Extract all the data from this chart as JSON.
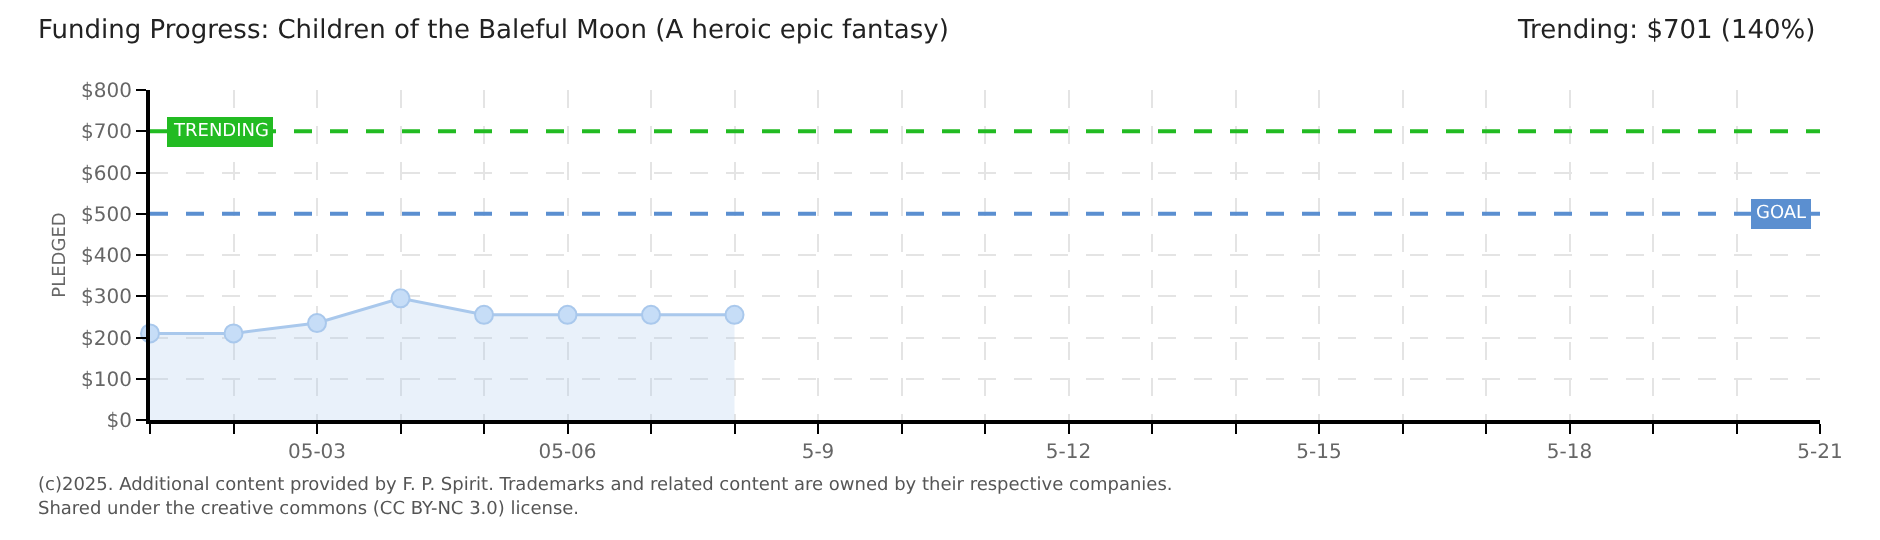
{
  "chart_data": {
    "type": "area",
    "title": "Funding Progress: Children of the Baleful Moon (A heroic epic fantasy)",
    "subtitle": "Trending: $701 (140%)",
    "ylabel": "PLEDGED",
    "x": [
      "--05-01",
      "--05-02",
      "--05-03",
      "--05-04",
      "--05-05",
      "--05-06",
      "--05-07",
      "--05-08"
    ],
    "series": [
      {
        "color": "#a9c8ec",
        "values": [
          210,
          210,
          235,
          295,
          255,
          255,
          255,
          255
        ]
      }
    ],
    "xlim": [
      "--05-01",
      "--05-21"
    ],
    "xticks": [
      {
        "value": "--05-01",
        "label": null
      },
      {
        "value": "--05-02",
        "label": null
      },
      {
        "value": "--05-03",
        "label": "05-03"
      },
      {
        "value": "--05-04",
        "label": null
      },
      {
        "value": "--05-05",
        "label": null
      },
      {
        "value": "--05-06",
        "label": "05-06"
      },
      {
        "value": "--05-07",
        "label": null
      },
      {
        "value": "--05-08",
        "label": null
      },
      {
        "value": "--05-09",
        "label": "5-9"
      },
      {
        "value": "--05-10",
        "label": null
      },
      {
        "value": "--05-11",
        "label": null
      },
      {
        "value": "--05-12",
        "label": "5-12"
      },
      {
        "value": "--05-13",
        "label": null
      },
      {
        "value": "--05-14",
        "label": null
      },
      {
        "value": "--05-15",
        "label": "5-15"
      },
      {
        "value": "--05-16",
        "label": null
      },
      {
        "value": "--05-17",
        "label": null
      },
      {
        "value": "--05-18",
        "label": "5-18"
      },
      {
        "value": "--05-19",
        "label": null
      },
      {
        "value": "--05-20",
        "label": null
      },
      {
        "value": "--05-21",
        "label": "5-21"
      }
    ],
    "ylim": [
      0,
      800
    ],
    "yticks": [
      {
        "value": 0,
        "label": "$0"
      },
      {
        "value": 100,
        "label": "$100"
      },
      {
        "value": 200,
        "label": "$200"
      },
      {
        "value": 300,
        "label": "$300"
      },
      {
        "value": 400,
        "label": "$400"
      },
      {
        "value": 500,
        "label": "$500"
      },
      {
        "value": 600,
        "label": "$600"
      },
      {
        "value": 700,
        "label": "$700"
      },
      {
        "value": 800,
        "label": "$800"
      }
    ],
    "ref_lines": [
      {
        "axis": "y",
        "value": 700,
        "label": "TRENDING",
        "color": "#22bb22",
        "line_style": "dashed"
      },
      {
        "axis": "y",
        "value": 500,
        "label": "GOAL",
        "color": "#5b8fd0",
        "line_style": "dashed"
      }
    ],
    "grid": true,
    "marker": "circle",
    "annotations": [
      "(c)2025. Additional content provided by F. P. Spirit. Trademarks and related content are owned by their respective companies.",
      "Shared under the creative commons (CC BY-NC 3.0) license."
    ]
  }
}
